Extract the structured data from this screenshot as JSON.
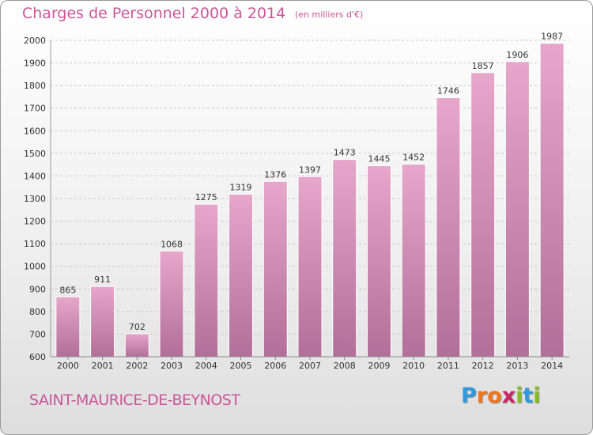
{
  "header": {
    "title": "Charges de Personnel 2000 à 2014",
    "subtitle": "(en milliers d'€)"
  },
  "footer": {
    "commune": "SAINT-MAURICE-DE-BEYNOST",
    "logo": {
      "letters": [
        "P",
        "r",
        "o",
        "x",
        "i",
        "t",
        "i"
      ],
      "colors": [
        "#3399dd",
        "#ee7722",
        "#ee7722",
        "#cc2266",
        "#88bb22",
        "#3399dd",
        "#88bb22"
      ]
    }
  },
  "colors": {
    "accent": "#cc5599",
    "bar_top": "#e6a7cb",
    "bar_bottom": "#b26f99"
  },
  "chart_data": {
    "type": "bar",
    "categories": [
      "2000",
      "2001",
      "2002",
      "2003",
      "2004",
      "2005",
      "2006",
      "2007",
      "2008",
      "2009",
      "2010",
      "2011",
      "2012",
      "2013",
      "2014"
    ],
    "values": [
      865,
      911,
      702,
      1068,
      1275,
      1319,
      1376,
      1397,
      1473,
      1445,
      1452,
      1746,
      1857,
      1906,
      1987
    ],
    "title": "Charges de Personnel 2000 à 2014",
    "ylim": [
      600,
      2000
    ],
    "yticks": [
      600,
      700,
      800,
      900,
      1000,
      1100,
      1200,
      1300,
      1400,
      1500,
      1600,
      1700,
      1800,
      1900,
      2000
    ],
    "grid": true,
    "data_labels": true
  }
}
